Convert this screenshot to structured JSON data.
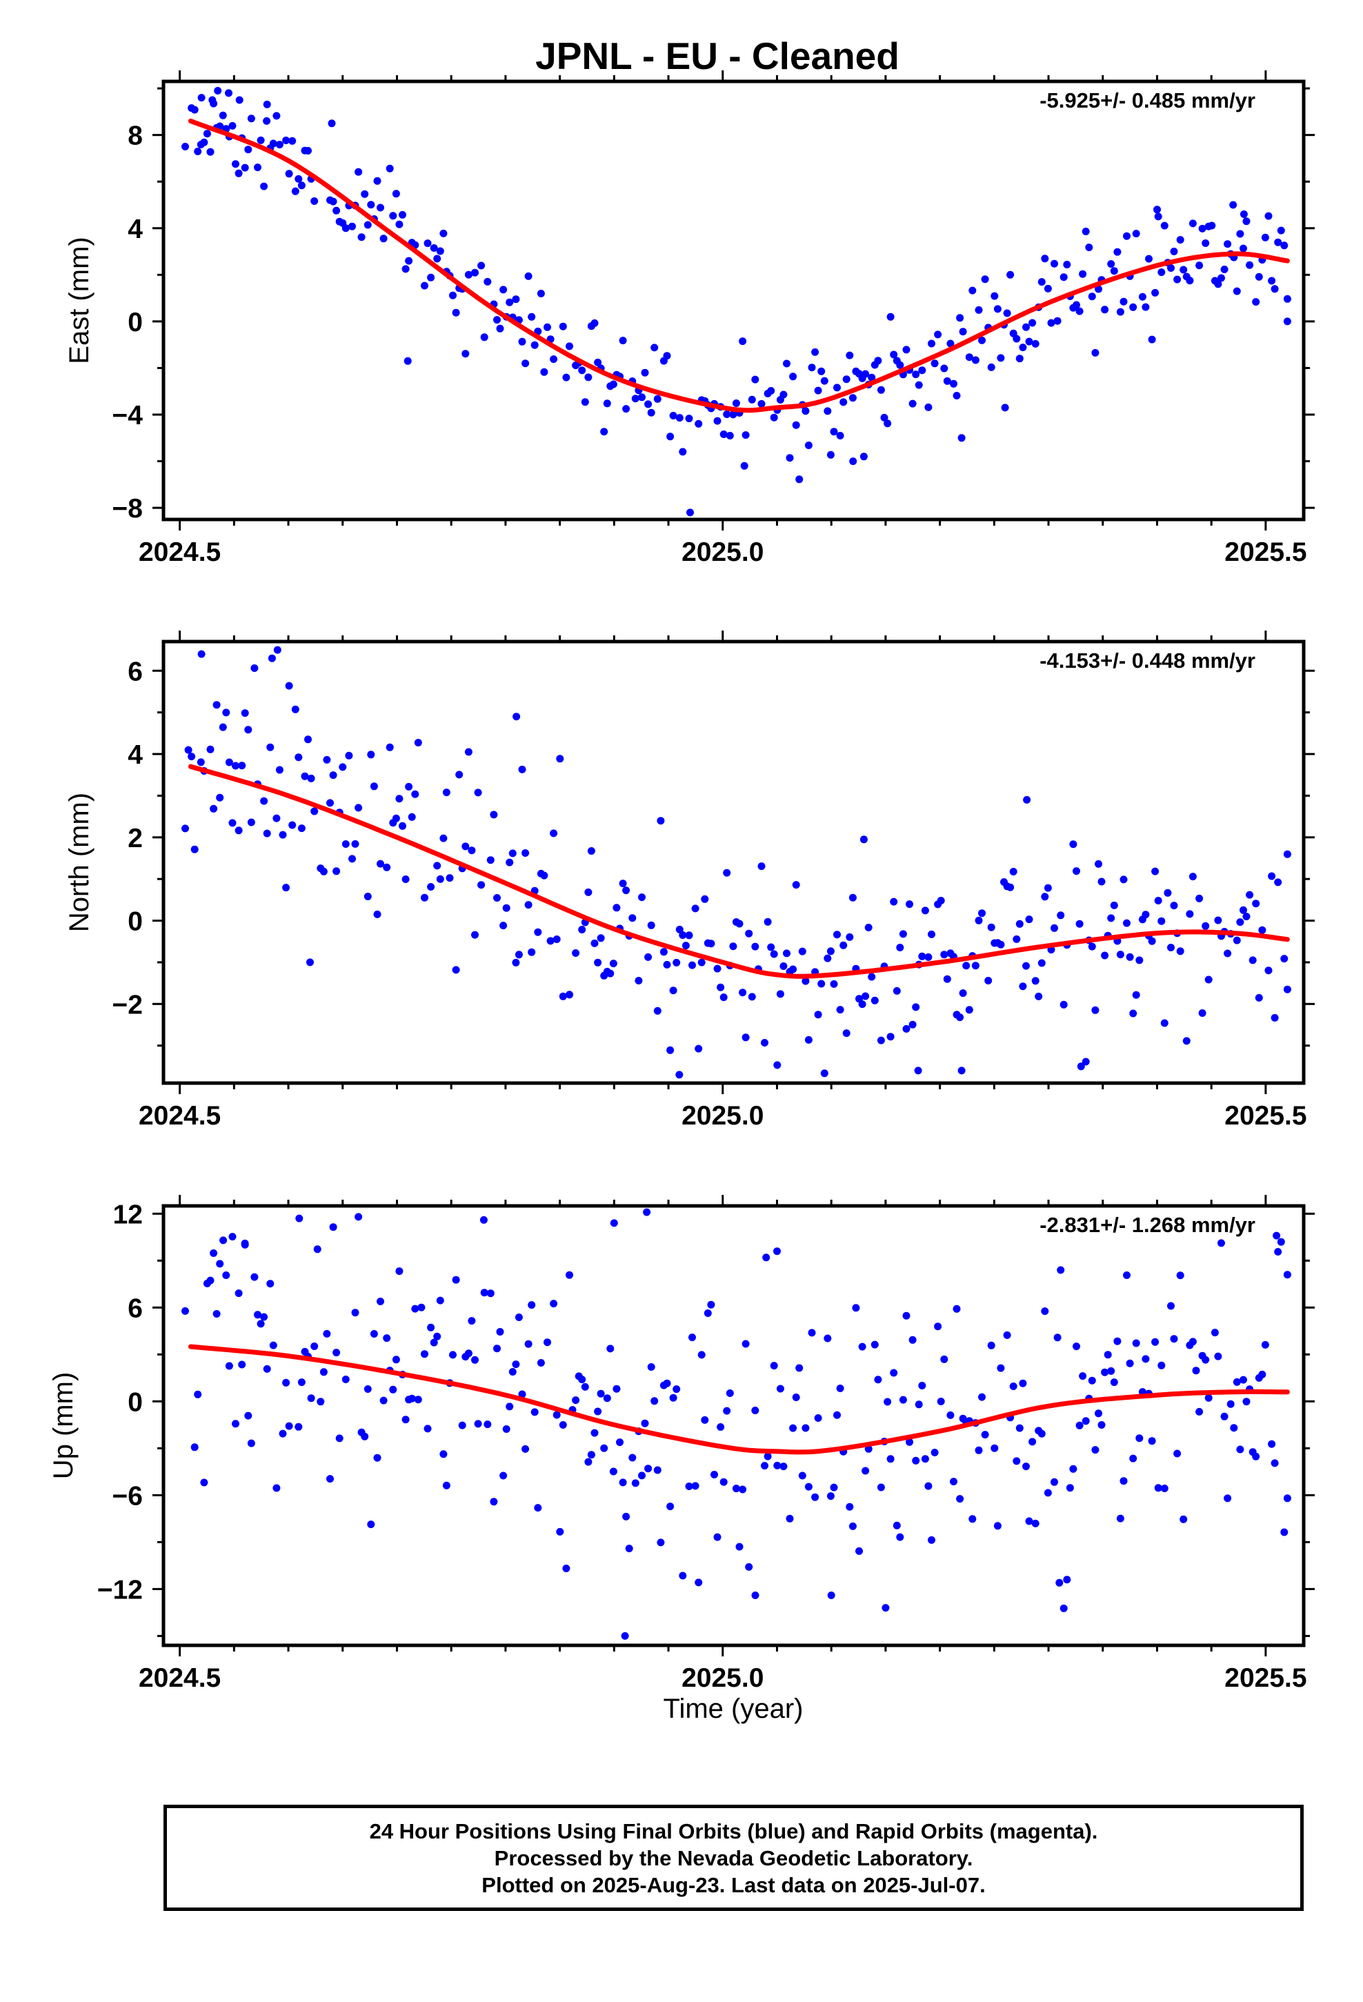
{
  "title": "JPNL  - EU - Cleaned",
  "xlabel": "Time (year)",
  "footer": {
    "line1": "24 Hour Positions Using Final Orbits (blue) and Rapid Orbits (magenta).",
    "line2": "Processed by the Nevada Geodetic Laboratory.",
    "line3": "Plotted on 2025-Aug-23. Last data on 2025-Jul-07."
  },
  "colors": {
    "points": "#0000ff",
    "fit": "#ff0000",
    "axes": "#000000"
  },
  "chart_data": [
    {
      "type": "scatter",
      "ylabel": "East (mm)",
      "rate_label": "-5.925+/- 0.485 mm/yr",
      "xlim": [
        2024.485,
        2025.535
      ],
      "ylim": [
        -8.5,
        10.3
      ],
      "xticks": [
        2024.5,
        2025.0,
        2025.5
      ],
      "xtick_labels": [
        "2024.5",
        "2025.0",
        "2025.5"
      ],
      "yticks": [
        -8,
        -4,
        0,
        4,
        8
      ],
      "ytick_labels": [
        "−8",
        "−4",
        "0",
        "4",
        "8"
      ],
      "fit": {
        "x": [
          2024.51,
          2024.6,
          2024.7,
          2024.8,
          2024.9,
          2025.0,
          2025.05,
          2025.1,
          2025.2,
          2025.3,
          2025.4,
          2025.47,
          2025.52
        ],
        "y": [
          8.6,
          6.9,
          3.6,
          0.2,
          -2.4,
          -3.7,
          -3.7,
          -3.3,
          -1.4,
          0.8,
          2.4,
          2.9,
          2.6
        ]
      },
      "points": {
        "seed": 11,
        "noise": 1.15,
        "extra": [
          [
            2024.52,
            9.6
          ],
          [
            2024.53,
            9.5
          ],
          [
            2024.535,
            9.9
          ],
          [
            2024.545,
            9.8
          ],
          [
            2024.555,
            9.5
          ],
          [
            2024.71,
            -1.7
          ],
          [
            2024.97,
            -8.2
          ],
          [
            2025.02,
            -6.2
          ],
          [
            2025.12,
            -6.0
          ],
          [
            2025.13,
            -5.8
          ],
          [
            2025.22,
            -5.0
          ],
          [
            2025.26,
            -3.7
          ],
          [
            2025.4,
            4.8
          ],
          [
            2025.47,
            5.0
          ],
          [
            2025.48,
            4.6
          ],
          [
            2025.52,
            0.0
          ],
          [
            2024.64,
            8.5
          ],
          [
            2024.58,
            8.6
          ]
        ]
      }
    },
    {
      "type": "scatter",
      "ylabel": "North (mm)",
      "rate_label": "-4.153+/- 0.448 mm/yr",
      "xlim": [
        2024.485,
        2025.535
      ],
      "ylim": [
        -3.9,
        6.7
      ],
      "xticks": [
        2024.5,
        2025.0,
        2025.5
      ],
      "xtick_labels": [
        "2024.5",
        "2025.0",
        "2025.5"
      ],
      "yticks": [
        -2,
        0,
        2,
        4,
        6
      ],
      "ytick_labels": [
        "−2",
        "0",
        "2",
        "4",
        "6"
      ],
      "fit": {
        "x": [
          2024.51,
          2024.6,
          2024.7,
          2024.8,
          2024.9,
          2025.0,
          2025.05,
          2025.1,
          2025.2,
          2025.3,
          2025.4,
          2025.47,
          2025.52
        ],
        "y": [
          3.7,
          3.0,
          2.0,
          0.9,
          -0.2,
          -1.0,
          -1.3,
          -1.3,
          -1.0,
          -0.6,
          -0.3,
          -0.3,
          -0.45
        ]
      },
      "points": {
        "seed": 23,
        "noise": 1.15,
        "extra": [
          [
            2024.52,
            6.4
          ],
          [
            2024.59,
            6.5
          ],
          [
            2024.585,
            6.3
          ],
          [
            2024.81,
            4.9
          ],
          [
            2024.96,
            -3.7
          ],
          [
            2025.28,
            2.9
          ],
          [
            2025.13,
            1.95
          ],
          [
            2025.33,
            -3.5
          ],
          [
            2025.18,
            -3.6
          ],
          [
            2025.22,
            -3.6
          ],
          [
            2024.62,
            -1.0
          ],
          [
            2025.52,
            -1.65
          ]
        ]
      }
    },
    {
      "type": "scatter",
      "ylabel": "Up (mm)",
      "rate_label": "-2.831+/- 1.268 mm/yr",
      "xlim": [
        2024.485,
        2025.535
      ],
      "ylim": [
        -15.6,
        12.5
      ],
      "xticks": [
        2024.5,
        2025.0,
        2025.5
      ],
      "xtick_labels": [
        "2024.5",
        "2025.0",
        "2025.5"
      ],
      "yticks": [
        -12,
        -6,
        0,
        6,
        12
      ],
      "ytick_labels": [
        "−12",
        "−6",
        "0",
        "6",
        "12"
      ],
      "fit": {
        "x": [
          2024.51,
          2024.6,
          2024.7,
          2024.8,
          2024.9,
          2025.0,
          2025.05,
          2025.1,
          2025.2,
          2025.3,
          2025.4,
          2025.47,
          2025.52
        ],
        "y": [
          3.5,
          2.9,
          1.8,
          0.4,
          -1.5,
          -2.9,
          -3.2,
          -3.1,
          -1.9,
          -0.3,
          0.4,
          0.6,
          0.6
        ]
      },
      "points": {
        "seed": 37,
        "noise": 4.2,
        "extra": [
          [
            2024.93,
            12.1
          ],
          [
            2024.91,
            -15.0
          ],
          [
            2024.61,
            11.7
          ],
          [
            2024.78,
            11.6
          ],
          [
            2025.15,
            -13.2
          ],
          [
            2025.31,
            -11.6
          ],
          [
            2025.04,
            9.2
          ],
          [
            2025.05,
            9.6
          ],
          [
            2025.51,
            10.6
          ],
          [
            2024.54,
            10.3
          ],
          [
            2024.56,
            10.1
          ],
          [
            2025.52,
            8.1
          ],
          [
            2025.03,
            -12.4
          ],
          [
            2025.1,
            -12.4
          ],
          [
            2024.9,
            11.4
          ]
        ]
      }
    }
  ]
}
